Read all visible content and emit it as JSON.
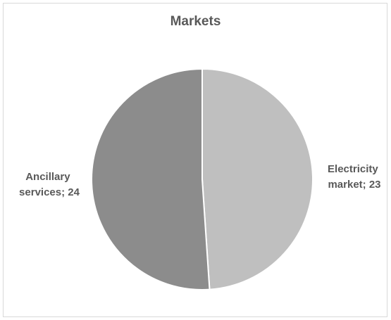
{
  "chart_data": {
    "type": "pie",
    "title": "Markets",
    "slices": [
      {
        "label": "Electricity market",
        "label_lines": [
          "Electricity",
          "market; 23"
        ],
        "value": 23,
        "color": "#bfbfbf"
      },
      {
        "label": "Ancillary services",
        "label_lines": [
          "Ancillary",
          "services; 24"
        ],
        "value": 24,
        "color": "#8c8c8c"
      }
    ],
    "legend": "none",
    "data_labels": "category; value"
  }
}
